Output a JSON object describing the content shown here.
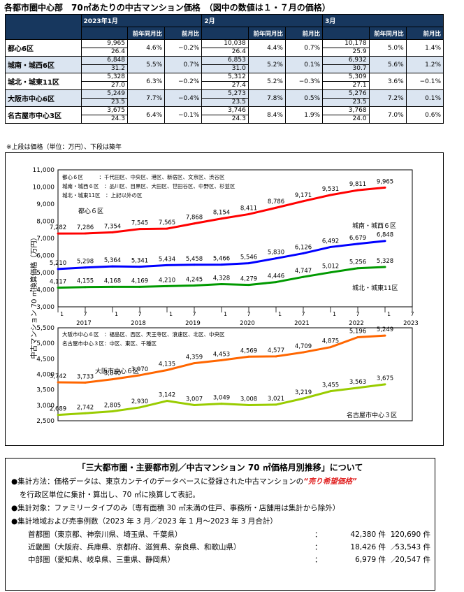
{
  "title": "各都市圏中心部　70㎡あたりの中古マンション価格　（図中の数値は１・７月の価格）",
  "table": {
    "periods": [
      "2023年1月",
      "2月",
      "3月"
    ],
    "subheads": [
      "前年同月比",
      "前月比"
    ],
    "rows": [
      {
        "area": "都心6区",
        "cells": [
          [
            "9,965",
            "26.4",
            "4.6%",
            "−0.2%"
          ],
          [
            "10,038",
            "26.4",
            "4.4%",
            "0.7%"
          ],
          [
            "10,178",
            "25.9",
            "5.0%",
            "1.4%"
          ]
        ]
      },
      {
        "area": "城南・城西6区",
        "cells": [
          [
            "6,848",
            "31.2",
            "5.5%",
            "0.7%"
          ],
          [
            "6,853",
            "31.0",
            "5.2%",
            "0.1%"
          ],
          [
            "6,932",
            "30.7",
            "5.6%",
            "1.2%"
          ]
        ]
      },
      {
        "area": "城北・城東11区",
        "cells": [
          [
            "5,328",
            "27.0",
            "6.3%",
            "−0.2%"
          ],
          [
            "5,312",
            "27.4",
            "5.2%",
            "−0.3%"
          ],
          [
            "5,309",
            "27.1",
            "3.6%",
            "−0.1%"
          ]
        ]
      },
      {
        "area": "大阪市中心6区",
        "cells": [
          [
            "5,249",
            "23.5",
            "7.7%",
            "−0.4%"
          ],
          [
            "5,273",
            "23.5",
            "7.8%",
            "0.5%"
          ],
          [
            "5,276",
            "23.5",
            "7.2%",
            "0.1%"
          ]
        ]
      },
      {
        "area": "名古屋市中心3区",
        "cells": [
          [
            "3,675",
            "24.3",
            "6.4%",
            "−0.1%"
          ],
          [
            "3,746",
            "24.3",
            "8.4%",
            "1.9%"
          ],
          [
            "3,768",
            "24.0",
            "7.0%",
            "0.6%"
          ]
        ]
      }
    ],
    "note": "※上段は価格（単位：万円）、下段は築年"
  },
  "chart_data": [
    {
      "type": "line",
      "ylabel": "中古マンション 70 ㎡換算価格（万円）",
      "ylim": [
        3000,
        11000
      ],
      "yticks": [
        "3,000",
        "4,000",
        "5,000",
        "6,000",
        "7,000",
        "8,000",
        "9,000",
        "10,000",
        "11,000"
      ],
      "x": [
        "2017/1",
        "2017/7",
        "2018/1",
        "2018/7",
        "2019/1",
        "2019/7",
        "2020/1",
        "2020/7",
        "2021/1",
        "2021/7",
        "2022/1",
        "2022/7",
        "2023/1"
      ],
      "xtick_labels": [
        "1",
        "7",
        "1",
        "7",
        "1",
        "7",
        "1",
        "7",
        "1",
        "7",
        "1",
        "7",
        "1",
        "7"
      ],
      "year_labels": [
        "2017",
        "2018",
        "2019",
        "2020",
        "2021",
        "2022",
        "2023"
      ],
      "legend": [
        "都心６区　　　：千代田区、中央区、港区、新宿区、文京区、渋谷区",
        "城南・城西６区　：品川区、目黒区、大田区、世田谷区、中野区、杉並区",
        "城北・城東11区　：上記以外の区"
      ],
      "series": [
        {
          "name": "都心６区",
          "color": "#ff0000",
          "values": [
            7282,
            7286,
            7354,
            7545,
            7565,
            7868,
            8154,
            8411,
            8786,
            9171,
            9531,
            9811,
            9965
          ]
        },
        {
          "name": "城南・城西６区",
          "color": "#0000ff",
          "values": [
            5210,
            5298,
            5364,
            5341,
            5434,
            5458,
            5466,
            5546,
            5830,
            6126,
            6492,
            6679,
            6848
          ]
        },
        {
          "name": "城北・城東11区",
          "color": "#009900",
          "values": [
            4117,
            4155,
            4168,
            4169,
            4210,
            4245,
            4328,
            4279,
            4446,
            4747,
            5012,
            5256,
            5328
          ]
        }
      ],
      "labels_text": [
        [
          "7,282",
          "7,286",
          "7,354",
          "7,545",
          "7,565",
          "7,868",
          "8,154",
          "8,411",
          "8,786",
          "9,171",
          "9,531",
          "9,811",
          "9,965"
        ],
        [
          "5,210",
          "5,298",
          "5,364",
          "5,341",
          "5,434",
          "5,458",
          "5,466",
          "5,546",
          "5,830",
          "6,126",
          "6,492",
          "6,679",
          "6,848"
        ],
        [
          "4,117",
          "4,155",
          "4,168",
          "4,169",
          "4,210",
          "4,245",
          "4,328",
          "4,279",
          "4,446",
          "4,747",
          "5,012",
          "5,256",
          "5,328"
        ]
      ]
    },
    {
      "type": "line",
      "ylim": [
        2500,
        5500
      ],
      "yticks": [
        "2,500",
        "3,000",
        "3,500",
        "4,000",
        "4,500",
        "5,000",
        "5,500"
      ],
      "x": [
        "2017/1",
        "2017/7",
        "2018/1",
        "2018/7",
        "2019/1",
        "2019/7",
        "2020/1",
        "2020/7",
        "2021/1",
        "2021/7",
        "2022/1",
        "2022/7",
        "2023/1"
      ],
      "legend": [
        "大阪市中心６区　：福島区、西区、天王寺区、浪速区、北区、中央区",
        "名古屋市中心３区：中区、東区、千種区"
      ],
      "series": [
        {
          "name": "大阪市中心６区",
          "color": "#ff6600",
          "values": [
            3742,
            3733,
            3840,
            3970,
            4135,
            4359,
            4453,
            4569,
            4577,
            4709,
            4875,
            5196,
            5249
          ]
        },
        {
          "name": "名古屋市中心３区",
          "color": "#99cc00",
          "values": [
            2689,
            2742,
            2805,
            2930,
            3142,
            3007,
            3049,
            3008,
            3021,
            3219,
            3455,
            3563,
            3675
          ]
        }
      ],
      "labels_text": [
        [
          "3,742",
          "3,733",
          "3,840",
          "3,970",
          "4,135",
          "4,359",
          "4,453",
          "4,569",
          "4,577",
          "4,709",
          "4,875",
          "5,196",
          "5,249"
        ],
        [
          "2,689",
          "2,742",
          "2,805",
          "2,930",
          "3,142",
          "3,007",
          "3,049",
          "3,008",
          "3,021",
          "3,219",
          "3,455",
          "3,563",
          "3,675"
        ]
      ]
    }
  ],
  "info": {
    "title": "「三大都市圏・主要都市別／中古マンション 70 ㎡価格月別推移」について",
    "method_a": "●集計方法：価格データは、東京カンテイのデータベースに登録された中古マンションの",
    "method_red": "“売り希望価格”",
    "method_b": "を行政区単位に集計・算出し、70 ㎡に換算して表記。",
    "target": "●集計対象：ファミリータイプのみ（専有面積 30 ㎡未満の住戸、事務所・店舗用は集計から除外）",
    "regions_line": "●集計地域および売事例数（2023 年 3 月／2023 年 1 月～2023 年 3 月合計）",
    "regions": [
      {
        "name": "首都圏（東京都、神奈川県、埼玉県、千葉県）",
        "month": "42,380 件",
        "total": "120,690 件"
      },
      {
        "name": "近畿圏（大阪府、兵庫県、京都府、滋賀県、奈良県、和歌山県）",
        "month": "18,426 件",
        "total": "53,543 件"
      },
      {
        "name": "中部圏（愛知県、岐阜県、三重県、静岡県）",
        "month": "6,979 件",
        "total": "20,547 件"
      }
    ]
  }
}
